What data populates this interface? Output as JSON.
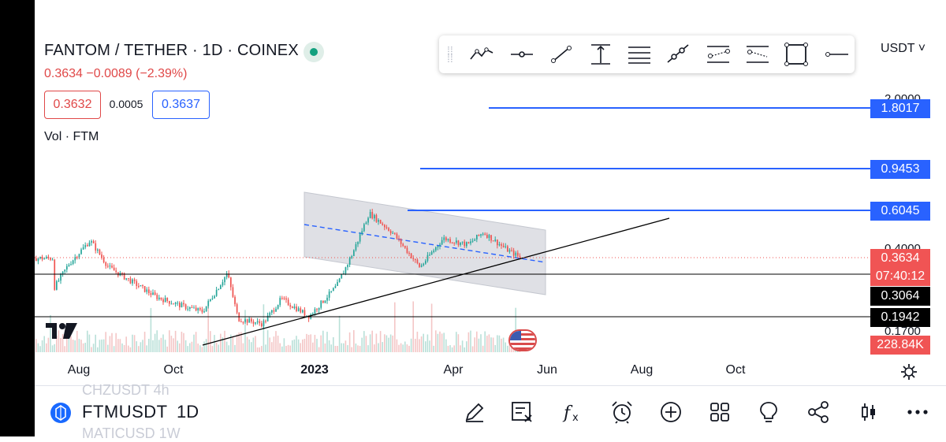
{
  "header": {
    "title": "FANTOM / TETHER · 1D · COINEX",
    "price_line": "0.3634  −0.0089 (−2.39%)",
    "bid": "0.3632",
    "spread": "0.0005",
    "ask": "0.3637",
    "volume_label": "Vol · FTM",
    "currency": "USDT ˅"
  },
  "toolbar": {
    "tools": [
      "path-tool-icon",
      "horizontal-ray-icon",
      "trend-line-icon",
      "price-range-icon",
      "parallel-lines-icon",
      "fib-icon",
      "pitchfork-icon",
      "regression-icon",
      "rectangle-icon",
      "horizontal-line-icon"
    ]
  },
  "price_scale": {
    "partial_labels": [
      "2.0000",
      "0.4000",
      "0.1700"
    ],
    "labels": [
      {
        "text": "1.8017",
        "kind": "line-level",
        "color": "#2962ff"
      },
      {
        "text": "0.9453",
        "kind": "line-level",
        "color": "#2962ff"
      },
      {
        "text": "0.6045",
        "kind": "line-level",
        "color": "#2962ff"
      },
      {
        "text": "0.3634",
        "kind": "last-price",
        "color": "#f05454"
      },
      {
        "text": "07:40:12",
        "kind": "countdown",
        "color": "#f05454"
      },
      {
        "text": "0.3064",
        "kind": "line-level",
        "color": "#000000"
      },
      {
        "text": "0.1942",
        "kind": "line-level",
        "color": "#000000"
      },
      {
        "text": "228.84K",
        "kind": "volume",
        "color": "#f05454"
      }
    ]
  },
  "time_axis": {
    "ticks": [
      {
        "label": "Aug",
        "bold": false
      },
      {
        "label": "Oct",
        "bold": false
      },
      {
        "label": "2023",
        "bold": true
      },
      {
        "label": "Apr",
        "bold": false
      },
      {
        "label": "Jun",
        "bold": false
      },
      {
        "label": "Aug",
        "bold": false
      },
      {
        "label": "Oct",
        "bold": false
      }
    ]
  },
  "chart_data": {
    "type": "candlestick",
    "symbol": "FTMUSDT",
    "interval": "1D",
    "last_price": 0.3634,
    "horizontal_levels": [
      1.8017,
      0.9453,
      0.6045,
      0.3064,
      0.1942
    ],
    "y_scale": "log",
    "y_range": [
      0.17,
      2.0
    ],
    "x_range_months": [
      "2022-07",
      "2023-10"
    ],
    "price_path": [
      [
        "2022-07-15",
        0.26
      ],
      [
        "2022-07-25",
        0.34
      ],
      [
        "2022-08-08",
        0.44
      ],
      [
        "2022-08-20",
        0.33
      ],
      [
        "2022-09-05",
        0.28
      ],
      [
        "2022-09-20",
        0.24
      ],
      [
        "2022-10-05",
        0.22
      ],
      [
        "2022-10-20",
        0.205
      ],
      [
        "2022-11-05",
        0.31
      ],
      [
        "2022-11-12",
        0.19
      ],
      [
        "2022-11-28",
        0.18
      ],
      [
        "2022-12-10",
        0.235
      ],
      [
        "2022-12-28",
        0.195
      ],
      [
        "2023-01-15",
        0.27
      ],
      [
        "2023-01-25",
        0.38
      ],
      [
        "2023-02-05",
        0.59
      ],
      [
        "2023-02-20",
        0.48
      ],
      [
        "2023-03-10",
        0.33
      ],
      [
        "2023-03-25",
        0.45
      ],
      [
        "2023-04-10",
        0.42
      ],
      [
        "2023-04-20",
        0.48
      ],
      [
        "2023-05-05",
        0.4
      ],
      [
        "2023-05-15",
        0.3634
      ]
    ]
  },
  "bottom_bar": {
    "ghost_top": "CHZUSDT  4h",
    "symbol": "FTMUSDT",
    "interval": "1D",
    "ghost_bottom": "MATICUSD  1W",
    "icons": [
      "pencil-icon",
      "text-note-icon",
      "indicators-icon",
      "alert-icon",
      "add-icon",
      "layout-icon",
      "idea-icon",
      "share-icon",
      "candle-style-icon",
      "more-icon"
    ]
  }
}
